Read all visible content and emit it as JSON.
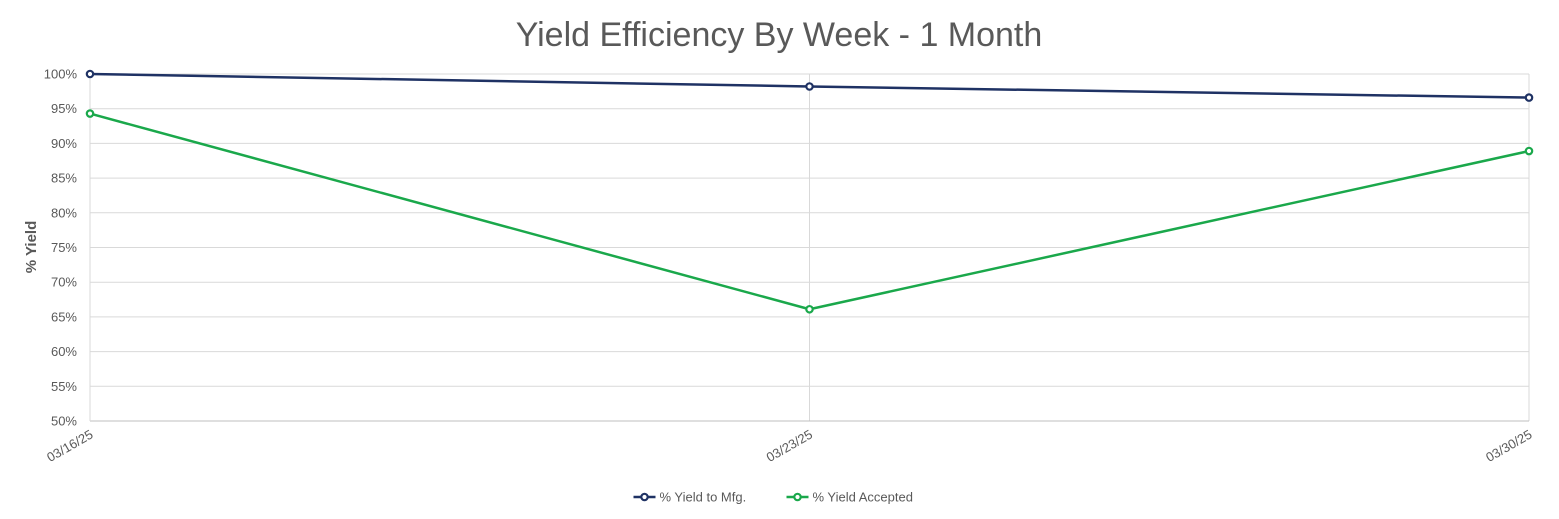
{
  "chart_data": {
    "type": "line",
    "title": "Yield Efficiency By Week - 1 Month",
    "xlabel": "",
    "ylabel": "% Yield",
    "categories": [
      "03/16/25",
      "03/23/25",
      "03/30/25"
    ],
    "ylim": [
      0.5,
      1.0
    ],
    "yticks": [
      "100%",
      "95%",
      "90%",
      "85%",
      "80%",
      "75%",
      "70%",
      "65%",
      "60%",
      "55%",
      "50%"
    ],
    "ytick_values": [
      1.0,
      0.95,
      0.9,
      0.85,
      0.8,
      0.75,
      0.7,
      0.65,
      0.6,
      0.55,
      0.5
    ],
    "grid": true,
    "legend_position": "bottom",
    "series": [
      {
        "name": "% Yield to Mfg.",
        "color": "#1f3264",
        "values": [
          1.0,
          0.982,
          0.966
        ]
      },
      {
        "name": "% Yield Accepted",
        "color": "#1aa84b",
        "values": [
          0.943,
          0.661,
          0.889
        ]
      }
    ]
  }
}
